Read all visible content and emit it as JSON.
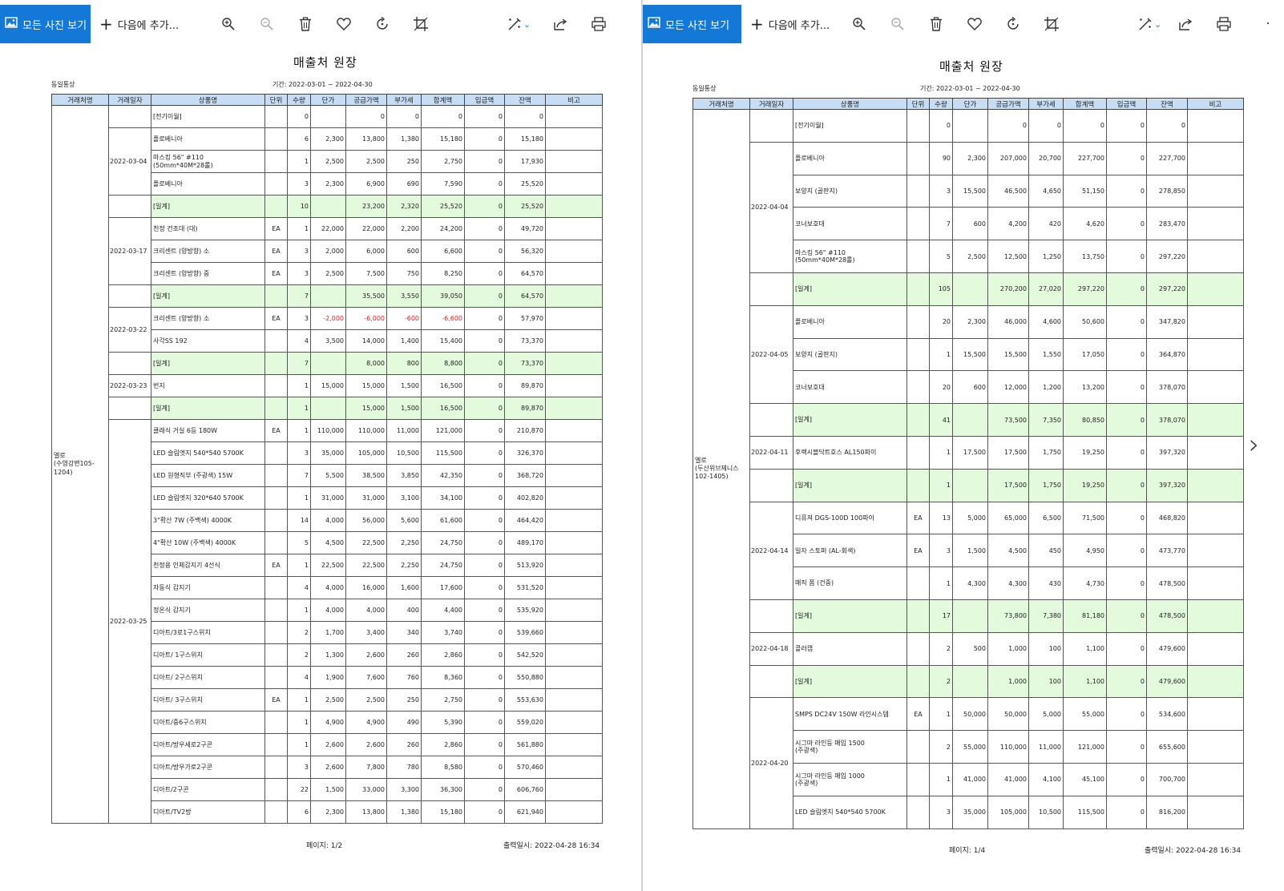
{
  "toolbar": {
    "all_photos": "모든 사진 보기",
    "add_to": "다음에 추가..."
  },
  "icons": [
    "gallery-icon",
    "plus-icon",
    "zoom-in-icon",
    "zoom-out-icon",
    "delete-icon",
    "favorite-icon",
    "rotate-icon",
    "crop-icon",
    "edit-icon",
    "chevron-down-icon",
    "share-icon",
    "print-icon",
    "next-arrow-icon"
  ],
  "left": {
    "title": "매출처 원장",
    "company": "동일통상",
    "period": "기간: 2022-03-01 ~ 2022-04-30",
    "headers": [
      "거래처명",
      "거래일자",
      "상품명",
      "단위",
      "수량",
      "단가",
      "공급가액",
      "부가세",
      "합계액",
      "입금액",
      "잔액",
      "비고"
    ],
    "client": "엘로\n(수영강변105-1204)",
    "rows": [
      {
        "date": "",
        "name": "[전기이월]",
        "unit": "",
        "qty": "0",
        "price": "",
        "supply": "0",
        "vat": "0",
        "total": "0",
        "paid": "0",
        "bal": "0",
        "sub": false,
        "neg": false
      },
      {
        "date": "2022-03-04",
        "name": "플로베니아",
        "unit": "",
        "qty": "6",
        "price": "2,300",
        "supply": "13,800",
        "vat": "1,380",
        "total": "15,180",
        "paid": "0",
        "bal": "15,180",
        "sub": false,
        "neg": false
      },
      {
        "date": "",
        "name": "마스킹 56\" #110\n(50mm*40M*28롤)",
        "unit": "",
        "qty": "1",
        "price": "2,500",
        "supply": "2,500",
        "vat": "250",
        "total": "2,750",
        "paid": "0",
        "bal": "17,930",
        "sub": false,
        "neg": false
      },
      {
        "date": "",
        "name": "플로베니아",
        "unit": "",
        "qty": "3",
        "price": "2,300",
        "supply": "6,900",
        "vat": "690",
        "total": "7,590",
        "paid": "0",
        "bal": "25,520",
        "sub": false,
        "neg": false
      },
      {
        "date": "",
        "name": "[일계]",
        "unit": "",
        "qty": "10",
        "price": "",
        "supply": "23,200",
        "vat": "2,320",
        "total": "25,520",
        "paid": "0",
        "bal": "25,520",
        "sub": true,
        "neg": false
      },
      {
        "date": "2022-03-17",
        "name": "천정 건조대 (대)",
        "unit": "EA",
        "qty": "1",
        "price": "22,000",
        "supply": "22,000",
        "vat": "2,200",
        "total": "24,200",
        "paid": "0",
        "bal": "49,720",
        "sub": false,
        "neg": false
      },
      {
        "date": "",
        "name": "크리센트 (양방향) 소",
        "unit": "EA",
        "qty": "3",
        "price": "2,000",
        "supply": "6,000",
        "vat": "600",
        "total": "6,600",
        "paid": "0",
        "bal": "56,320",
        "sub": false,
        "neg": false
      },
      {
        "date": "",
        "name": "크리센트 (양방향) 중",
        "unit": "EA",
        "qty": "3",
        "price": "2,500",
        "supply": "7,500",
        "vat": "750",
        "total": "8,250",
        "paid": "0",
        "bal": "64,570",
        "sub": false,
        "neg": false
      },
      {
        "date": "",
        "name": "[일계]",
        "unit": "",
        "qty": "7",
        "price": "",
        "supply": "35,500",
        "vat": "3,550",
        "total": "39,050",
        "paid": "0",
        "bal": "64,570",
        "sub": true,
        "neg": false
      },
      {
        "date": "2022-03-22",
        "name": "크리센트 (양방향) 소",
        "unit": "EA",
        "qty": "3",
        "price": "-2,000",
        "supply": "-6,000",
        "vat": "-600",
        "total": "-6,600",
        "paid": "0",
        "bal": "57,970",
        "sub": false,
        "neg": true
      },
      {
        "date": "",
        "name": "사각SS 192",
        "unit": "",
        "qty": "4",
        "price": "3,500",
        "supply": "14,000",
        "vat": "1,400",
        "total": "15,400",
        "paid": "0",
        "bal": "73,370",
        "sub": false,
        "neg": false
      },
      {
        "date": "",
        "name": "[일계]",
        "unit": "",
        "qty": "7",
        "price": "",
        "supply": "8,000",
        "vat": "800",
        "total": "8,800",
        "paid": "0",
        "bal": "73,370",
        "sub": true,
        "neg": false
      },
      {
        "date": "2022-03-23",
        "name": "번지",
        "unit": "",
        "qty": "1",
        "price": "15,000",
        "supply": "15,000",
        "vat": "1,500",
        "total": "16,500",
        "paid": "0",
        "bal": "89,870",
        "sub": false,
        "neg": false
      },
      {
        "date": "",
        "name": "[일계]",
        "unit": "",
        "qty": "1",
        "price": "",
        "supply": "15,000",
        "vat": "1,500",
        "total": "16,500",
        "paid": "0",
        "bal": "89,870",
        "sub": true,
        "neg": false
      },
      {
        "date": "2022-03-25",
        "name": "클래식 거실 6등 180W",
        "unit": "EA",
        "qty": "1",
        "price": "110,000",
        "supply": "110,000",
        "vat": "11,000",
        "total": "121,000",
        "paid": "0",
        "bal": "210,870",
        "sub": false,
        "neg": false
      },
      {
        "date": "",
        "name": "LED 슬림엣지 540*540 5700K",
        "unit": "",
        "qty": "3",
        "price": "35,000",
        "supply": "105,000",
        "vat": "10,500",
        "total": "115,500",
        "paid": "0",
        "bal": "326,370",
        "sub": false,
        "neg": false
      },
      {
        "date": "",
        "name": "LED 원형직부 (주광색) 15W",
        "unit": "",
        "qty": "7",
        "price": "5,500",
        "supply": "38,500",
        "vat": "3,850",
        "total": "42,350",
        "paid": "0",
        "bal": "368,720",
        "sub": false,
        "neg": false
      },
      {
        "date": "",
        "name": "LED 슬림엣지 320*640 5700K",
        "unit": "",
        "qty": "1",
        "price": "31,000",
        "supply": "31,000",
        "vat": "3,100",
        "total": "34,100",
        "paid": "0",
        "bal": "402,820",
        "sub": false,
        "neg": false
      },
      {
        "date": "",
        "name": "3\"확산 7W (주백색) 4000K",
        "unit": "",
        "qty": "14",
        "price": "4,000",
        "supply": "56,000",
        "vat": "5,600",
        "total": "61,600",
        "paid": "0",
        "bal": "464,420",
        "sub": false,
        "neg": false
      },
      {
        "date": "",
        "name": "4\"확산 10W (주백색) 4000K",
        "unit": "",
        "qty": "5",
        "price": "4,500",
        "supply": "22,500",
        "vat": "2,250",
        "total": "24,750",
        "paid": "0",
        "bal": "489,170",
        "sub": false,
        "neg": false
      },
      {
        "date": "",
        "name": "천정용 인체감지기 4선식",
        "unit": "EA",
        "qty": "1",
        "price": "22,500",
        "supply": "22,500",
        "vat": "2,250",
        "total": "24,750",
        "paid": "0",
        "bal": "513,920",
        "sub": false,
        "neg": false
      },
      {
        "date": "",
        "name": "자동식 감지기",
        "unit": "",
        "qty": "4",
        "price": "4,000",
        "supply": "16,000",
        "vat": "1,600",
        "total": "17,600",
        "paid": "0",
        "bal": "531,520",
        "sub": false,
        "neg": false
      },
      {
        "date": "",
        "name": "정온식 감지기",
        "unit": "",
        "qty": "1",
        "price": "4,000",
        "supply": "4,000",
        "vat": "400",
        "total": "4,400",
        "paid": "0",
        "bal": "535,920",
        "sub": false,
        "neg": false
      },
      {
        "date": "",
        "name": "디아트/3로1구스위치",
        "unit": "",
        "qty": "2",
        "price": "1,700",
        "supply": "3,400",
        "vat": "340",
        "total": "3,740",
        "paid": "0",
        "bal": "539,660",
        "sub": false,
        "neg": false
      },
      {
        "date": "",
        "name": "디아트/ 1구스위치",
        "unit": "",
        "qty": "2",
        "price": "1,300",
        "supply": "2,600",
        "vat": "260",
        "total": "2,860",
        "paid": "0",
        "bal": "542,520",
        "sub": false,
        "neg": false
      },
      {
        "date": "",
        "name": "디아트/ 2구스위치",
        "unit": "",
        "qty": "4",
        "price": "1,900",
        "supply": "7,600",
        "vat": "760",
        "total": "8,360",
        "paid": "0",
        "bal": "550,880",
        "sub": false,
        "neg": false
      },
      {
        "date": "",
        "name": "디아트/ 3구스위치",
        "unit": "EA",
        "qty": "1",
        "price": "2,500",
        "supply": "2,500",
        "vat": "250",
        "total": "2,750",
        "paid": "0",
        "bal": "553,630",
        "sub": false,
        "neg": false
      },
      {
        "date": "",
        "name": "디아트/중6구스위치",
        "unit": "",
        "qty": "1",
        "price": "4,900",
        "supply": "4,900",
        "vat": "490",
        "total": "5,390",
        "paid": "0",
        "bal": "559,020",
        "sub": false,
        "neg": false
      },
      {
        "date": "",
        "name": "디아트/방우세로2구콘",
        "unit": "",
        "qty": "1",
        "price": "2,600",
        "supply": "2,600",
        "vat": "260",
        "total": "2,860",
        "paid": "0",
        "bal": "561,880",
        "sub": false,
        "neg": false
      },
      {
        "date": "",
        "name": "디아트/방우가로2구콘",
        "unit": "",
        "qty": "3",
        "price": "2,600",
        "supply": "7,800",
        "vat": "780",
        "total": "8,580",
        "paid": "0",
        "bal": "570,460",
        "sub": false,
        "neg": false
      },
      {
        "date": "",
        "name": "디아트/2구콘",
        "unit": "",
        "qty": "22",
        "price": "1,500",
        "supply": "33,000",
        "vat": "3,300",
        "total": "36,300",
        "paid": "0",
        "bal": "606,760",
        "sub": false,
        "neg": false
      },
      {
        "date": "",
        "name": "디아트/TV2방",
        "unit": "",
        "qty": "6",
        "price": "2,300",
        "supply": "13,800",
        "vat": "1,380",
        "total": "15,180",
        "paid": "0",
        "bal": "621,940",
        "sub": false,
        "neg": false
      }
    ],
    "date_spans": [
      [
        0,
        1
      ],
      [
        1,
        3
      ],
      [
        4,
        1
      ],
      [
        5,
        3
      ],
      [
        8,
        1
      ],
      [
        9,
        2
      ],
      [
        11,
        1
      ],
      [
        12,
        1
      ],
      [
        13,
        1
      ],
      [
        14,
        18
      ]
    ],
    "page": "페이지: 1/2",
    "printed": "출력일시: 2022-04-28 16:34"
  },
  "right": {
    "title": "매출처 원장",
    "company": "동일통상",
    "period": "기간: 2022-03-01 ~ 2022-04-30",
    "headers": [
      "거래처명",
      "거래일자",
      "상품명",
      "단위",
      "수량",
      "단가",
      "공급가액",
      "부가세",
      "합계액",
      "입금액",
      "잔액",
      "비고"
    ],
    "client": "엘로\n(두산위브제니스102-1405)",
    "rows": [
      {
        "date": "",
        "name": "[전기이월]",
        "unit": "",
        "qty": "0",
        "price": "",
        "supply": "0",
        "vat": "0",
        "total": "0",
        "paid": "0",
        "bal": "0",
        "sub": false,
        "neg": false
      },
      {
        "date": "2022-04-04",
        "name": "플로베니아",
        "unit": "",
        "qty": "90",
        "price": "2,300",
        "supply": "207,000",
        "vat": "20,700",
        "total": "227,700",
        "paid": "0",
        "bal": "227,700",
        "sub": false,
        "neg": false
      },
      {
        "date": "",
        "name": "보양지 (골판지)",
        "unit": "",
        "qty": "3",
        "price": "15,500",
        "supply": "46,500",
        "vat": "4,650",
        "total": "51,150",
        "paid": "0",
        "bal": "278,850",
        "sub": false,
        "neg": false
      },
      {
        "date": "",
        "name": "코너보호대",
        "unit": "",
        "qty": "7",
        "price": "600",
        "supply": "4,200",
        "vat": "420",
        "total": "4,620",
        "paid": "0",
        "bal": "283,470",
        "sub": false,
        "neg": false
      },
      {
        "date": "",
        "name": "마스킹 56\" #110\n(50mm*40M*28롤)",
        "unit": "",
        "qty": "5",
        "price": "2,500",
        "supply": "12,500",
        "vat": "1,250",
        "total": "13,750",
        "paid": "0",
        "bal": "297,220",
        "sub": false,
        "neg": false
      },
      {
        "date": "",
        "name": "[일계]",
        "unit": "",
        "qty": "105",
        "price": "",
        "supply": "270,200",
        "vat": "27,020",
        "total": "297,220",
        "paid": "0",
        "bal": "297,220",
        "sub": true,
        "neg": false
      },
      {
        "date": "2022-04-05",
        "name": "플로베니아",
        "unit": "",
        "qty": "20",
        "price": "2,300",
        "supply": "46,000",
        "vat": "4,600",
        "total": "50,600",
        "paid": "0",
        "bal": "347,820",
        "sub": false,
        "neg": false
      },
      {
        "date": "",
        "name": "보양지 (골판지)",
        "unit": "",
        "qty": "1",
        "price": "15,500",
        "supply": "15,500",
        "vat": "1,550",
        "total": "17,050",
        "paid": "0",
        "bal": "364,870",
        "sub": false,
        "neg": false
      },
      {
        "date": "",
        "name": "코너보호대",
        "unit": "",
        "qty": "20",
        "price": "600",
        "supply": "12,000",
        "vat": "1,200",
        "total": "13,200",
        "paid": "0",
        "bal": "378,070",
        "sub": false,
        "neg": false
      },
      {
        "date": "",
        "name": "[일계]",
        "unit": "",
        "qty": "41",
        "price": "",
        "supply": "73,500",
        "vat": "7,350",
        "total": "80,850",
        "paid": "0",
        "bal": "378,070",
        "sub": true,
        "neg": false
      },
      {
        "date": "2022-04-11",
        "name": "후렉시블닥트호스 AL150파이",
        "unit": "",
        "qty": "1",
        "price": "17,500",
        "supply": "17,500",
        "vat": "1,750",
        "total": "19,250",
        "paid": "0",
        "bal": "397,320",
        "sub": false,
        "neg": false
      },
      {
        "date": "",
        "name": "[일계]",
        "unit": "",
        "qty": "1",
        "price": "",
        "supply": "17,500",
        "vat": "1,750",
        "total": "19,250",
        "paid": "0",
        "bal": "397,320",
        "sub": true,
        "neg": false
      },
      {
        "date": "2022-04-14",
        "name": "디퓨져 DGS-100D 100파이",
        "unit": "EA",
        "qty": "13",
        "price": "5,000",
        "supply": "65,000",
        "vat": "6,500",
        "total": "71,500",
        "paid": "0",
        "bal": "468,820",
        "sub": false,
        "neg": false
      },
      {
        "date": "",
        "name": "일자 스토퍼 (AL-회색)",
        "unit": "EA",
        "qty": "3",
        "price": "1,500",
        "supply": "4,500",
        "vat": "450",
        "total": "4,950",
        "paid": "0",
        "bal": "473,770",
        "sub": false,
        "neg": false
      },
      {
        "date": "",
        "name": "매직 폼 (건중)",
        "unit": "",
        "qty": "1",
        "price": "4,300",
        "supply": "4,300",
        "vat": "430",
        "total": "4,730",
        "paid": "0",
        "bal": "478,500",
        "sub": false,
        "neg": false
      },
      {
        "date": "",
        "name": "[일계]",
        "unit": "",
        "qty": "17",
        "price": "",
        "supply": "73,800",
        "vat": "7,380",
        "total": "81,180",
        "paid": "0",
        "bal": "478,500",
        "sub": true,
        "neg": false
      },
      {
        "date": "2022-04-18",
        "name": "콜러캡",
        "unit": "",
        "qty": "2",
        "price": "500",
        "supply": "1,000",
        "vat": "100",
        "total": "1,100",
        "paid": "0",
        "bal": "479,600",
        "sub": false,
        "neg": false
      },
      {
        "date": "",
        "name": "[일계]",
        "unit": "",
        "qty": "2",
        "price": "",
        "supply": "1,000",
        "vat": "100",
        "total": "1,100",
        "paid": "0",
        "bal": "479,600",
        "sub": true,
        "neg": false
      },
      {
        "date": "2022-04-20",
        "name": "SMPS DC24V 150W 라인시스템",
        "unit": "EA",
        "qty": "1",
        "price": "50,000",
        "supply": "50,000",
        "vat": "5,000",
        "total": "55,000",
        "paid": "0",
        "bal": "534,600",
        "sub": false,
        "neg": false
      },
      {
        "date": "",
        "name": "시그마 라인등 매입 1500\n(주광색)",
        "unit": "",
        "qty": "2",
        "price": "55,000",
        "supply": "110,000",
        "vat": "11,000",
        "total": "121,000",
        "paid": "0",
        "bal": "655,600",
        "sub": false,
        "neg": false
      },
      {
        "date": "",
        "name": "시그마 라인등 매입 1000\n(주광색)",
        "unit": "",
        "qty": "1",
        "price": "41,000",
        "supply": "41,000",
        "vat": "4,100",
        "total": "45,100",
        "paid": "0",
        "bal": "700,700",
        "sub": false,
        "neg": false
      },
      {
        "date": "",
        "name": "LED 슬림엣지 540*540 5700K",
        "unit": "",
        "qty": "3",
        "price": "35,000",
        "supply": "105,000",
        "vat": "10,500",
        "total": "115,500",
        "paid": "0",
        "bal": "816,200",
        "sub": false,
        "neg": false
      }
    ],
    "date_spans": [
      [
        0,
        1
      ],
      [
        1,
        4
      ],
      [
        5,
        1
      ],
      [
        6,
        3
      ],
      [
        9,
        1
      ],
      [
        10,
        1
      ],
      [
        11,
        1
      ],
      [
        12,
        3
      ],
      [
        15,
        1
      ],
      [
        16,
        1
      ],
      [
        17,
        1
      ],
      [
        18,
        4
      ]
    ],
    "page": "페이지: 1/4",
    "printed": "출력일시: 2022-04-28 16:34"
  }
}
